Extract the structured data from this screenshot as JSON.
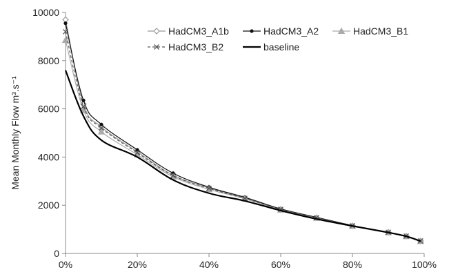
{
  "chart_data": {
    "type": "line",
    "title": "",
    "xlabel": "",
    "ylabel": "Mean Monthly Flow m³.s⁻¹",
    "xlim": [
      0,
      100
    ],
    "ylim": [
      0,
      10000
    ],
    "x_ticks": [
      0,
      20,
      40,
      60,
      80,
      100
    ],
    "x_tick_labels": [
      "0%",
      "20%",
      "40%",
      "60%",
      "80%",
      "100%"
    ],
    "y_ticks": [
      0,
      2000,
      4000,
      6000,
      8000,
      10000
    ],
    "y_tick_labels": [
      "0",
      "2000",
      "4000",
      "6000",
      "8000",
      "10000"
    ],
    "grid": false,
    "legend_position": "top-right",
    "x": [
      0,
      5,
      10,
      20,
      30,
      40,
      50,
      60,
      70,
      80,
      90,
      95,
      99
    ],
    "series": [
      {
        "name": "HadCM3_A1b",
        "color": "#999999",
        "dash": "none",
        "marker": "diamond-open",
        "values": [
          9700,
          6200,
          5250,
          4220,
          3250,
          2720,
          2300,
          1830,
          1480,
          1150,
          880,
          720,
          520
        ]
      },
      {
        "name": "HadCM3_A2",
        "color": "#111111",
        "dash": "none",
        "marker": "dot",
        "values": [
          9550,
          6350,
          5350,
          4300,
          3330,
          2750,
          2330,
          1850,
          1500,
          1160,
          880,
          720,
          520
        ]
      },
      {
        "name": "HadCM3_B1",
        "color": "#aaaaaa",
        "dash": "none",
        "marker": "triangle",
        "values": [
          8850,
          5950,
          5050,
          4100,
          3180,
          2660,
          2270,
          1810,
          1470,
          1140,
          870,
          710,
          510
        ]
      },
      {
        "name": "HadCM3_B2",
        "color": "#555555",
        "dash": "4,3",
        "marker": "x",
        "values": [
          9200,
          6100,
          5200,
          4180,
          3230,
          2700,
          2290,
          1830,
          1480,
          1150,
          880,
          720,
          520
        ]
      },
      {
        "name": "baseline",
        "color": "#000000",
        "dash": "none",
        "marker": "none",
        "width": 2.2,
        "values": [
          7600,
          5700,
          4700,
          4000,
          3050,
          2500,
          2180,
          1780,
          1430,
          1140,
          870,
          710,
          510
        ]
      }
    ]
  }
}
